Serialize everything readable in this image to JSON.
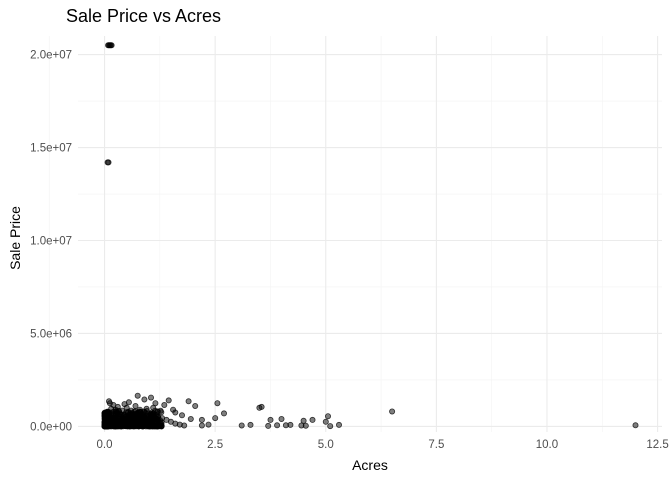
{
  "chart_data": {
    "type": "scatter",
    "title": "Sale Price vs Acres",
    "xlabel": "Acres",
    "ylabel": "Sale Price",
    "xlim": [
      -0.6,
      12.6
    ],
    "ylim": [
      -300000,
      21000000
    ],
    "x_ticks": [
      0,
      2.5,
      5,
      7.5,
      10,
      12.5
    ],
    "x_tick_labels": [
      "0.0",
      "2.5",
      "5.0",
      "7.5",
      "10.0",
      "12.5"
    ],
    "y_ticks": [
      0,
      5000000,
      10000000,
      15000000,
      20000000
    ],
    "y_tick_labels": [
      "0.0e+00",
      "5.0e+06",
      "1.0e+07",
      "1.5e+07",
      "2.0e+07"
    ],
    "grid": true,
    "legend": "none",
    "point_color": "#000000",
    "point_alpha": 0.5,
    "points": [
      [
        0.08,
        20500000
      ],
      [
        0.1,
        20500000
      ],
      [
        0.12,
        20500000
      ],
      [
        0.14,
        20500000
      ],
      [
        0.16,
        20500000
      ],
      [
        0.07,
        14200000
      ],
      [
        0.09,
        14200000
      ],
      [
        0.1,
        1350000
      ],
      [
        0.12,
        1250000
      ],
      [
        0.3,
        1050000
      ],
      [
        0.5,
        1000000
      ],
      [
        0.15,
        950000
      ],
      [
        0.25,
        900000
      ],
      [
        0.4,
        850000
      ],
      [
        0.6,
        850000
      ],
      [
        0.8,
        900000
      ],
      [
        0.95,
        950000
      ],
      [
        1.1,
        1000000
      ],
      [
        0.7,
        1100000
      ],
      [
        0.45,
        1200000
      ],
      [
        0.9,
        1450000
      ],
      [
        0.75,
        1650000
      ],
      [
        0.55,
        1300000
      ],
      [
        0.2,
        1150000
      ],
      [
        0.35,
        700000
      ],
      [
        0.65,
        650000
      ],
      [
        0.05,
        600000
      ],
      [
        0.15,
        500000
      ],
      [
        0.25,
        450000
      ],
      [
        0.35,
        400000
      ],
      [
        0.45,
        350000
      ],
      [
        0.55,
        300000
      ],
      [
        0.65,
        250000
      ],
      [
        0.75,
        200000
      ],
      [
        0.85,
        150000
      ],
      [
        0.95,
        100000
      ],
      [
        0.1,
        300000
      ],
      [
        0.2,
        250000
      ],
      [
        0.3,
        200000
      ],
      [
        0.4,
        150000
      ],
      [
        0.5,
        100000
      ],
      [
        0.6,
        50000
      ],
      [
        0.7,
        300000
      ],
      [
        0.8,
        400000
      ],
      [
        0.9,
        350000
      ],
      [
        1.0,
        250000
      ],
      [
        1.1,
        600000
      ],
      [
        1.2,
        550000
      ],
      [
        1.3,
        450000
      ],
      [
        1.4,
        350000
      ],
      [
        1.5,
        250000
      ],
      [
        1.6,
        150000
      ],
      [
        1.7,
        100000
      ],
      [
        1.8,
        50000
      ],
      [
        1.2,
        800000
      ],
      [
        1.35,
        1150000
      ],
      [
        1.6,
        750000
      ],
      [
        1.9,
        1350000
      ],
      [
        2.05,
        1100000
      ],
      [
        2.2,
        350000
      ],
      [
        2.35,
        100000
      ],
      [
        2.5,
        450000
      ],
      [
        2.55,
        1250000
      ],
      [
        2.7,
        700000
      ],
      [
        2.2,
        50000
      ],
      [
        1.95,
        400000
      ],
      [
        1.75,
        600000
      ],
      [
        1.55,
        900000
      ],
      [
        1.45,
        1400000
      ],
      [
        1.15,
        1250000
      ],
      [
        1.05,
        1550000
      ],
      [
        0.02,
        50000
      ],
      [
        0.04,
        80000
      ],
      [
        0.06,
        120000
      ],
      [
        0.08,
        160000
      ],
      [
        0.12,
        40000
      ],
      [
        0.14,
        90000
      ],
      [
        0.18,
        140000
      ],
      [
        0.22,
        60000
      ],
      [
        0.28,
        110000
      ],
      [
        0.32,
        30000
      ],
      [
        0.38,
        70000
      ],
      [
        0.42,
        130000
      ],
      [
        0.48,
        20000
      ],
      [
        0.52,
        180000
      ],
      [
        0.58,
        90000
      ],
      [
        3.1,
        50000
      ],
      [
        3.3,
        80000
      ],
      [
        3.5,
        1000000
      ],
      [
        3.55,
        1050000
      ],
      [
        3.7,
        30000
      ],
      [
        3.75,
        350000
      ],
      [
        3.9,
        60000
      ],
      [
        4.0,
        400000
      ],
      [
        4.1,
        60000
      ],
      [
        4.2,
        80000
      ],
      [
        4.45,
        50000
      ],
      [
        4.5,
        300000
      ],
      [
        4.55,
        40000
      ],
      [
        4.7,
        350000
      ],
      [
        5.0,
        250000
      ],
      [
        5.05,
        550000
      ],
      [
        5.3,
        80000
      ],
      [
        5.1,
        20000
      ],
      [
        6.5,
        800000
      ],
      [
        12.0,
        60000
      ]
    ]
  }
}
